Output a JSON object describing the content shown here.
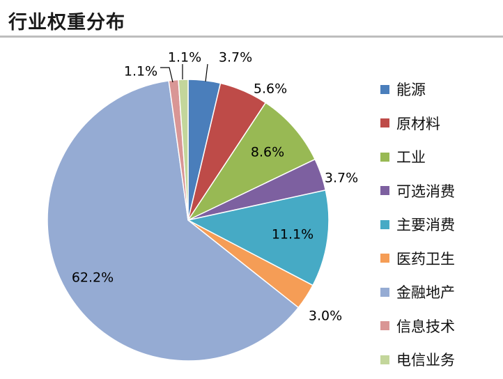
{
  "title": "行业权重分布",
  "chart_data": {
    "type": "pie",
    "categories": [
      "能源",
      "原材料",
      "工业",
      "可选消费",
      "主要消费",
      "医药卫生",
      "金融地产",
      "信息技术",
      "电信业务"
    ],
    "values": [
      3.7,
      5.6,
      8.6,
      3.7,
      11.1,
      3.0,
      62.2,
      1.1,
      1.1
    ],
    "labels": [
      "3.7%",
      "5.6%",
      "8.6%",
      "3.7%",
      "11.1%",
      "3.0%",
      "62.2%",
      "1.1%",
      "1.1%"
    ],
    "colors": [
      "#4A7EBB",
      "#BE4B48",
      "#98B954",
      "#7D60A0",
      "#46AAC5",
      "#F59D56",
      "#95ABD3",
      "#D99695",
      "#C3D69B"
    ],
    "legend_position": "right",
    "start": "top, clockwise"
  }
}
